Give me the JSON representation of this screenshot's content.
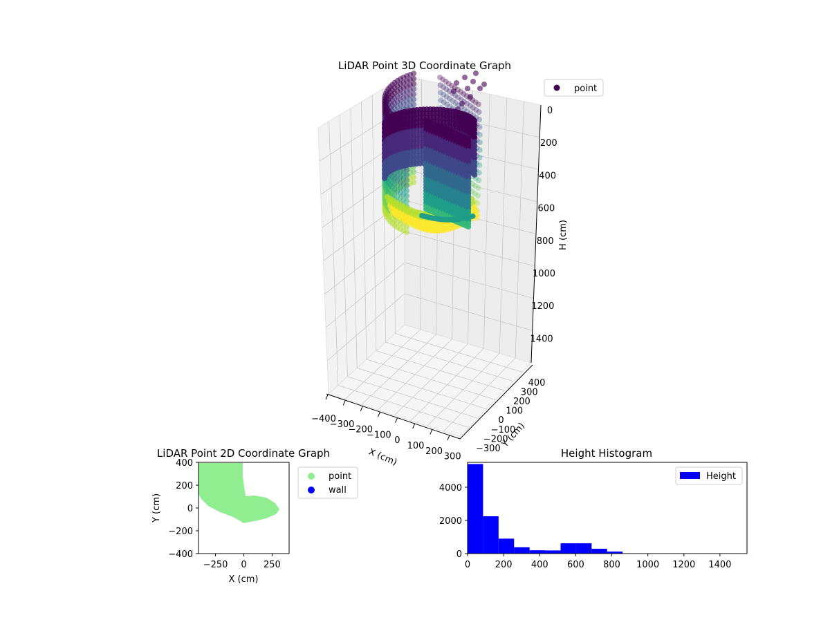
{
  "chart_data": [
    {
      "type": "scatter3d",
      "title": "LiDAR Point 3D Coordinate Graph",
      "xlabel": "X (cm)",
      "ylabel": "Y (cm)",
      "zlabel": "H (cm)",
      "xlim": [
        -400,
        400
      ],
      "ylim": [
        -400,
        400
      ],
      "zlim": [
        0,
        1550
      ],
      "z_inverted": true,
      "xticks": [
        "−400",
        "−300",
        "−200",
        "−100",
        "0",
        "100",
        "200",
        "300"
      ],
      "yticks": [
        "−300",
        "−200",
        "−100",
        "0",
        "100",
        "200",
        "300",
        "400"
      ],
      "zticks": [
        "0",
        "200",
        "400",
        "600",
        "800",
        "1000",
        "1200",
        "1400"
      ],
      "colormap": "viridis",
      "legend": {
        "placement": "outside-top-right",
        "entries": [
          {
            "name": "point",
            "color": "#440154"
          }
        ]
      },
      "grid": true
    },
    {
      "type": "scatter",
      "title": "LiDAR Point 2D Coordinate Graph",
      "xlabel": "X (cm)",
      "ylabel": "Y (cm)",
      "xlim": [
        -400,
        400
      ],
      "ylim": [
        -400,
        400
      ],
      "xticks": [
        "−250",
        "0",
        "250"
      ],
      "yticks": [
        "400",
        "200",
        "0",
        "−200",
        "−400"
      ],
      "series": [
        {
          "name": "point",
          "color": "#90ee90"
        },
        {
          "name": "wall",
          "color": "#0000ff"
        }
      ],
      "legend": {
        "placement": "outside-right",
        "entries": [
          "point",
          "wall"
        ]
      },
      "grid": false
    },
    {
      "type": "bar",
      "title": "Height Histogram",
      "xlabel": "",
      "ylabel": "",
      "xlim": [
        0,
        1550
      ],
      "ylim": [
        0,
        5500
      ],
      "xticks": [
        "0",
        "200",
        "400",
        "600",
        "800",
        "1000",
        "1200",
        "1400"
      ],
      "yticks": [
        "0",
        "2000",
        "4000"
      ],
      "bin_width": 86,
      "bins_start": [
        0,
        86,
        172,
        258,
        344,
        430,
        516,
        602,
        688,
        774
      ],
      "values": [
        5400,
        2250,
        900,
        380,
        200,
        190,
        620,
        620,
        290,
        120
      ],
      "series": [
        {
          "name": "Height",
          "color": "#0000ff"
        }
      ],
      "legend": {
        "placement": "top-right",
        "entries": [
          "Height"
        ]
      }
    }
  ]
}
